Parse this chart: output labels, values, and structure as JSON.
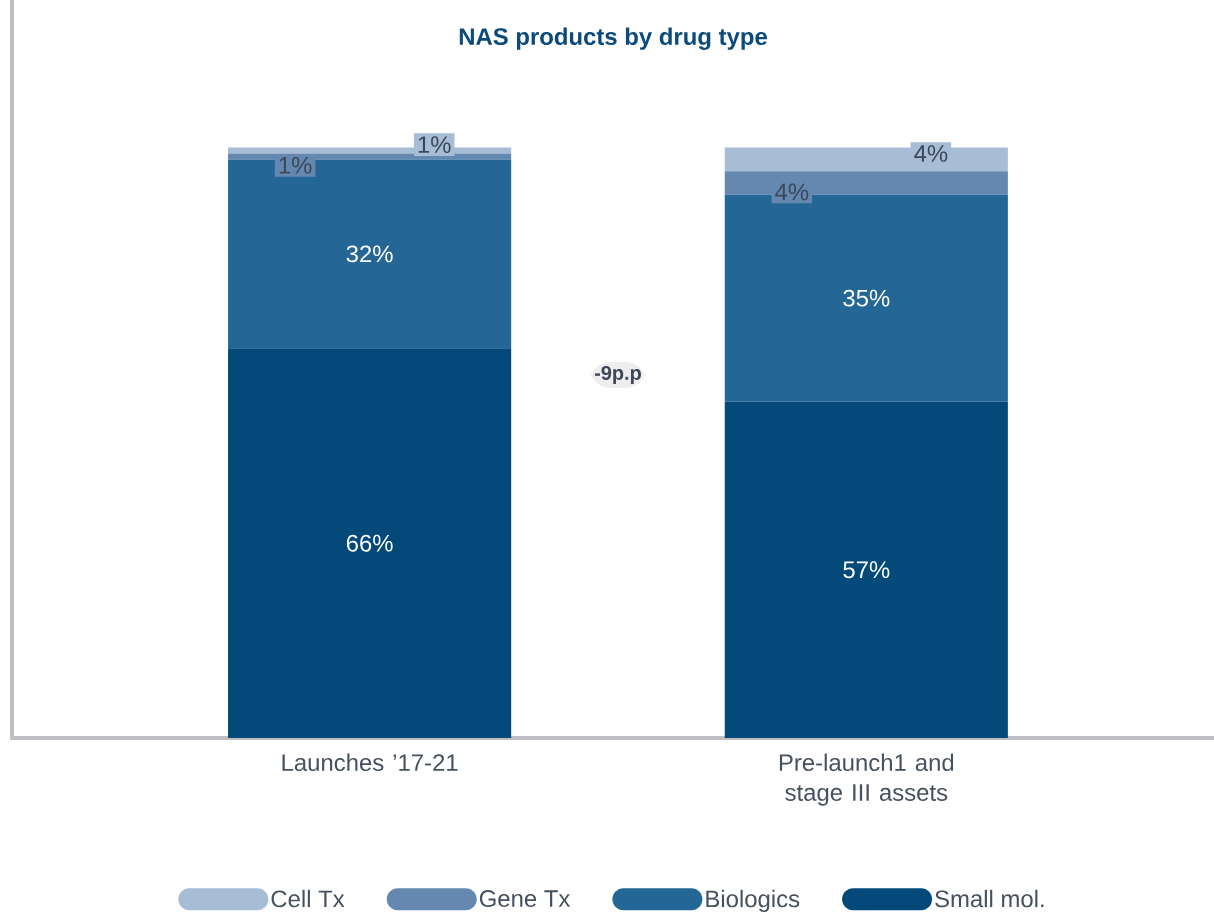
{
  "chart_data": {
    "type": "bar",
    "stacked": true,
    "title": "NAS products by drug type",
    "categories": [
      "Launches ’17-21",
      "Pre-launch1 and stage III assets"
    ],
    "series": [
      {
        "name": "Small mol.",
        "color": "#034a7b",
        "values": [
          66,
          57
        ],
        "value_labels": [
          "66%",
          "57%"
        ]
      },
      {
        "name": "Biologics",
        "color": "#246796",
        "values": [
          32,
          35
        ],
        "value_labels": [
          "32%",
          "35%"
        ]
      },
      {
        "name": "Gene Tx",
        "color": "#6588b0",
        "values": [
          1,
          4
        ],
        "value_labels": [
          "1%",
          "4%"
        ]
      },
      {
        "name": "Cell Tx",
        "color": "#a7bdd6",
        "values": [
          1,
          4
        ],
        "value_labels": [
          "1%",
          "4%"
        ]
      }
    ],
    "ylim": [
      0,
      125
    ],
    "tick_labels": "x",
    "legend": "bottom",
    "annotations": [
      "-9p.p"
    ]
  }
}
